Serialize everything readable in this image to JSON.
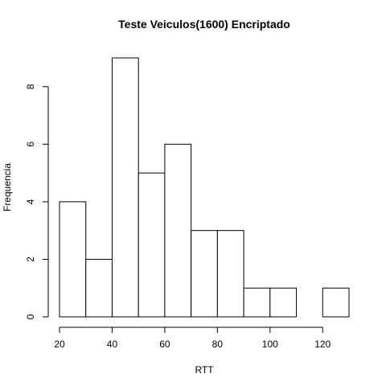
{
  "chart_data": {
    "type": "bar",
    "title": "Teste Veiculos(1600) Encriptado",
    "xlabel": "RTT",
    "ylabel": "Frequencia",
    "bins": [
      {
        "from": 20,
        "to": 30,
        "count": 4
      },
      {
        "from": 30,
        "to": 40,
        "count": 2
      },
      {
        "from": 40,
        "to": 50,
        "count": 9
      },
      {
        "from": 50,
        "to": 60,
        "count": 5
      },
      {
        "from": 60,
        "to": 70,
        "count": 6
      },
      {
        "from": 70,
        "to": 80,
        "count": 3
      },
      {
        "from": 80,
        "to": 90,
        "count": 3
      },
      {
        "from": 90,
        "to": 100,
        "count": 1
      },
      {
        "from": 100,
        "to": 110,
        "count": 1
      },
      {
        "from": 110,
        "to": 120,
        "count": 0
      },
      {
        "from": 120,
        "to": 130,
        "count": 1
      }
    ],
    "x_ticks": [
      20,
      40,
      60,
      80,
      100,
      120
    ],
    "y_ticks": [
      0,
      2,
      4,
      6,
      8
    ],
    "xlim": [
      20,
      130
    ],
    "ylim": [
      0,
      9
    ],
    "grid": false,
    "legend": "none"
  }
}
